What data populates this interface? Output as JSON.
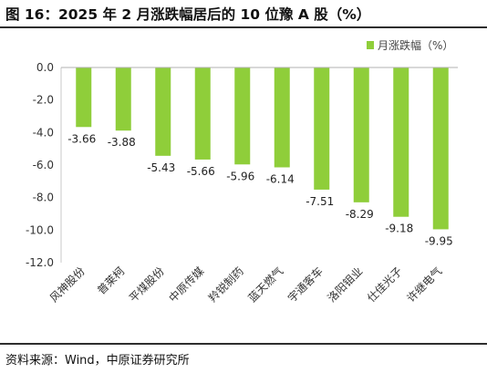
{
  "figure": {
    "title": "图 16：2025 年 2 月涨跌幅居后的 10 位豫 A 股（%）",
    "source": "资料来源：Wind，中原证券研究所"
  },
  "chart_data": {
    "type": "bar",
    "categories": [
      "风神股份",
      "普莱柯",
      "平煤股份",
      "中原传媒",
      "羚锐制药",
      "蓝天燃气",
      "宇通客车",
      "洛阳钼业",
      "仕佳光子",
      "许继电气"
    ],
    "series": [
      {
        "name": "月涨跌幅（%）",
        "values": [
          -3.66,
          -3.88,
          -5.43,
          -5.66,
          -5.96,
          -6.14,
          -7.51,
          -8.29,
          -9.18,
          -9.95
        ],
        "color": "#8fce3a"
      }
    ],
    "yticks": [
      "0.0",
      "-2.0",
      "-4.0",
      "-6.0",
      "-8.0",
      "-10.0",
      "-12.0"
    ],
    "ylim": [
      -12,
      0
    ],
    "legend_position": "top-right",
    "grid": false,
    "data_labels": true
  }
}
